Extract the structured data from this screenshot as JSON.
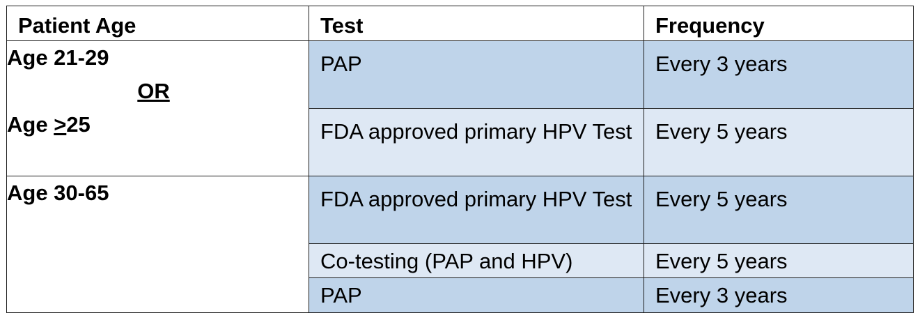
{
  "headers": [
    "Patient Age",
    "Test",
    "Frequency"
  ],
  "groups": [
    {
      "age_line1": "Age 21-29",
      "or_label": "OR",
      "age_line2_prefix": "Age ",
      "age_line2_symbol": ">",
      "age_line2_value": "25",
      "rows": [
        {
          "test": "PAP",
          "frequency": "Every 3 years"
        },
        {
          "test": "FDA approved primary HPV Test",
          "frequency": "Every 5 years"
        }
      ]
    },
    {
      "age_line1": "Age 30-65",
      "rows": [
        {
          "test": "FDA approved primary HPV Test",
          "frequency": "Every 5 years"
        },
        {
          "test": "Co-testing (PAP and HPV)",
          "frequency": "Every 5 years"
        },
        {
          "test": "PAP",
          "frequency": "Every 3 years"
        }
      ]
    }
  ],
  "colors": {
    "row_dark": "#bfd4ea",
    "row_light": "#dee8f4",
    "border": "#1a1a1a"
  }
}
